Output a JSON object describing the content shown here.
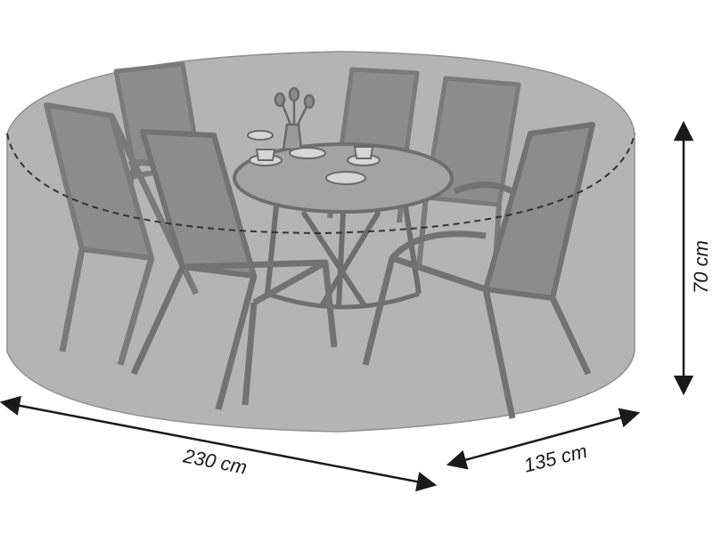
{
  "dimensions": {
    "length": "230 cm",
    "depth": "135 cm",
    "height": "70 cm"
  },
  "colors": {
    "cover_fill": "#b4b4b4",
    "cover_outline": "#8e8e8e",
    "furniture": "#7a7a7a",
    "furniture_dark": "#666666",
    "mesh": "#8c8c8c",
    "table_top": "#a3a3a3",
    "arrow": "#1a1a1a",
    "dashed_line": "#333333"
  }
}
